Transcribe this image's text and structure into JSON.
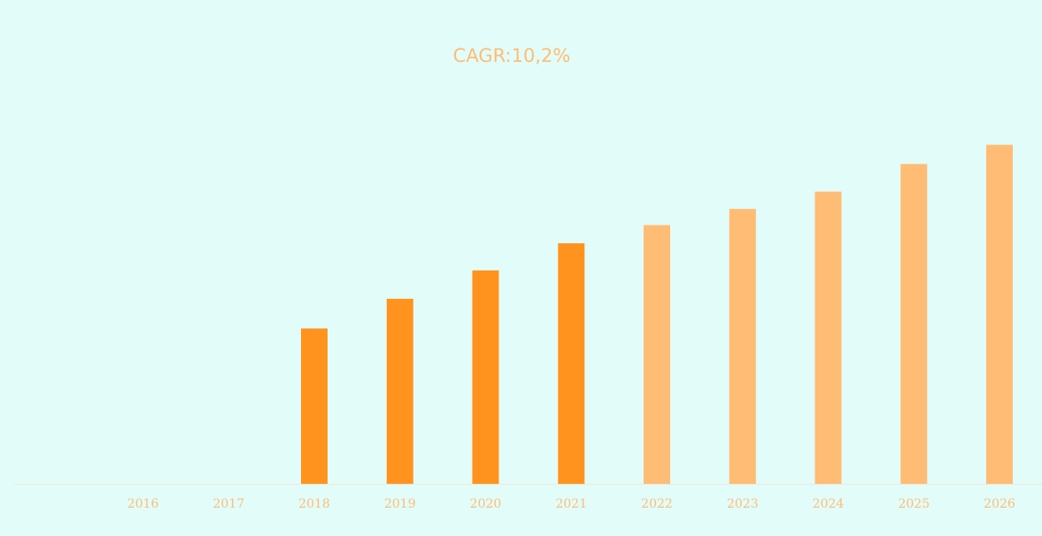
{
  "chart_data": {
    "type": "bar",
    "title": "CAGR:10,2%",
    "categories": [
      "2016",
      "2017",
      "2018",
      "2019",
      "2020",
      "2021",
      "2022",
      "2023",
      "2024",
      "2025",
      "2026"
    ],
    "values": [
      0,
      0,
      46,
      54.8,
      63.2,
      71.2,
      76.6,
      81.4,
      86.5,
      94.7,
      100.4
    ],
    "forecast_from": "2022",
    "ylim": [
      0,
      110
    ],
    "xlabel": "",
    "ylabel": "",
    "grid": false,
    "legend": "none",
    "colors": {
      "background": "#e2fcf9",
      "historical_bar": "#ff931e",
      "forecast_bar": "#ffbc75",
      "text": "#ffbc75",
      "baseline": "#f3e6d8"
    }
  }
}
